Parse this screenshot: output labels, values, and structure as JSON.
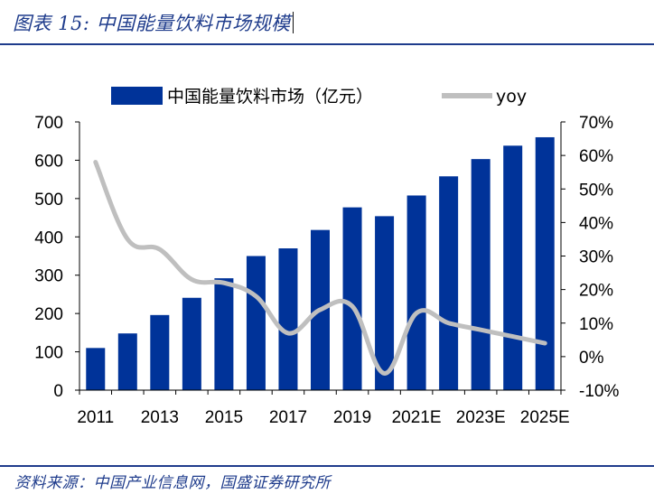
{
  "figure": {
    "title": "图表 15:  中国能量饮料市场规模",
    "source": "资料来源：中国产业信息网，国盛证券研究所"
  },
  "colors": {
    "bar": "#003399",
    "line": "#bfbfbf",
    "title": "#1f3c8c"
  },
  "chart_data": {
    "type": "bar",
    "combo": "bar + line (secondary axis)",
    "categories": [
      "2011",
      "2012",
      "2013",
      "2014",
      "2015",
      "2016",
      "2017",
      "2018",
      "2019",
      "2020",
      "2021E",
      "2022E",
      "2023E",
      "2024E",
      "2025E"
    ],
    "x_tick_labels": [
      "2011",
      "2013",
      "2015",
      "2017",
      "2019",
      "2021E",
      "2023E",
      "2025E"
    ],
    "series": [
      {
        "name": "中国能量饮料市场（亿元）",
        "type": "bar",
        "axis": "left",
        "values": [
          110,
          148,
          196,
          241,
          292,
          350,
          370,
          418,
          477,
          454,
          508,
          558,
          603,
          638,
          660
        ]
      },
      {
        "name": "yoy",
        "type": "line",
        "axis": "right",
        "values": [
          58,
          35,
          32,
          23,
          22,
          18,
          7,
          14,
          15,
          -5,
          13,
          10,
          8,
          6,
          4
        ]
      }
    ],
    "y_left": {
      "min": 0,
      "max": 700,
      "ticks": [
        "0",
        "100",
        "200",
        "300",
        "400",
        "500",
        "600",
        "700"
      ]
    },
    "y_right": {
      "min": -10,
      "max": 70,
      "unit": "%",
      "ticks": [
        "-10%",
        "0%",
        "10%",
        "20%",
        "30%",
        "40%",
        "50%",
        "60%",
        "70%"
      ]
    },
    "legend_position": "top",
    "grid": false
  }
}
